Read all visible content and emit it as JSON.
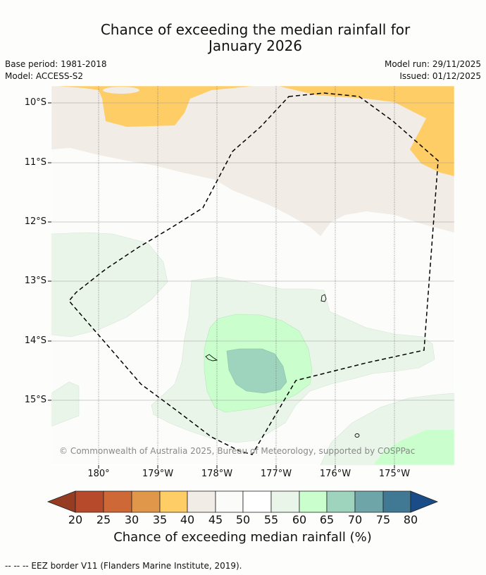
{
  "title_line1": "Chance of exceeding the median rainfall for",
  "title_line2": "January 2026",
  "base_period": "Base period: 1981-2018",
  "model": "Model: ACCESS-S2",
  "model_run": "Model run: 29/11/2025",
  "issued": "Issued: 01/12/2025",
  "copyright": "© Commonwealth of Australia 2025, Bureau of Meteorology, supported by COSPPac",
  "latitudes": [
    "10°S",
    "11°S",
    "12°S",
    "13°S",
    "14°S",
    "15°S"
  ],
  "longitudes": [
    "180°",
    "179°W",
    "178°W",
    "177°W",
    "176°W",
    "175°W"
  ],
  "colorbar": {
    "ticks": [
      "20",
      "25",
      "30",
      "35",
      "40",
      "45",
      "50",
      "55",
      "60",
      "65",
      "70",
      "75",
      "80"
    ],
    "title": "Chance of exceeding median rainfall (%)",
    "colors": {
      "below_20": "#963c23",
      "20_25": "#b64a2b",
      "25_30": "#ce6836",
      "30_35": "#e1974a",
      "35_40": "#ffcd66",
      "40_45": "#f1ece6",
      "45_50": "#fbfcfa",
      "50_55": "#ffffff",
      "55_60": "#eaf5ea",
      "60_65": "#caffcd",
      "65_70": "#9ed4bd",
      "70_75": "#6ea5a8",
      "75_80": "#417995",
      "above_80": "#1a4c87"
    }
  },
  "footnote": "--  --  -- EEZ border V11 (Flanders Marine Institute, 2019)."
}
